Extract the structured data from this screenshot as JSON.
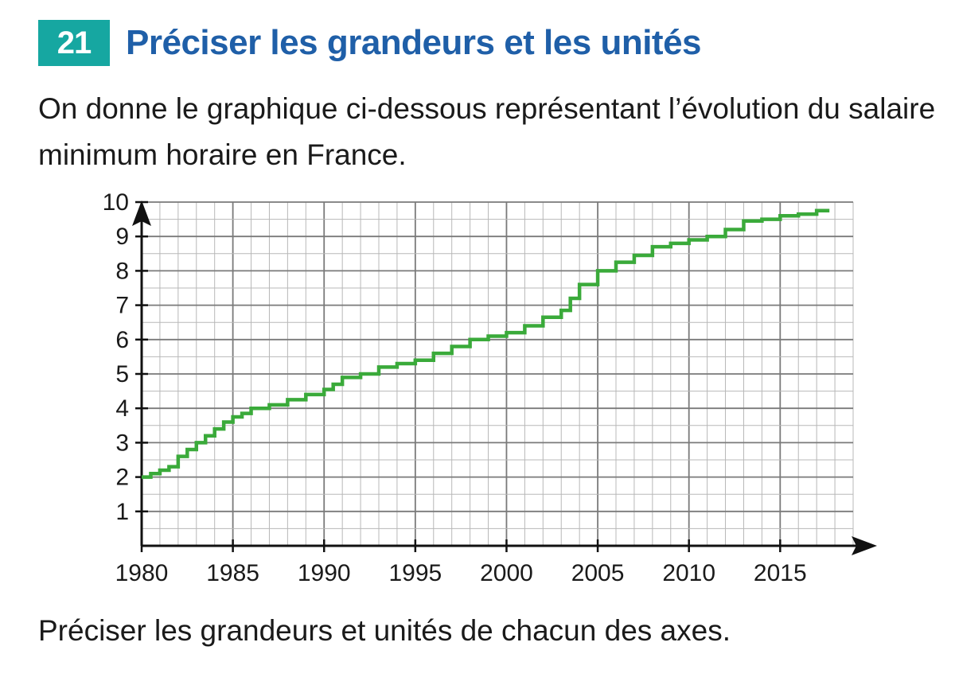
{
  "exercise": {
    "number": "21",
    "title": "Préciser les grandeurs et les unités",
    "intro": "On donne le graphique ci-dessous représentant l’évolution du salaire minimum horaire en France.",
    "question": "Préciser les grandeurs et unités de chacun des axes."
  },
  "colors": {
    "badge": "#16a7a1",
    "title": "#1f5fa8",
    "series": "#3aaa3a",
    "grid": "#9a9a9a"
  },
  "chart_data": {
    "type": "line",
    "title": "",
    "xlabel": "",
    "ylabel": "",
    "xlim": [
      1980,
      2019
    ],
    "ylim": [
      0,
      10
    ],
    "x_ticks": [
      1980,
      1985,
      1990,
      1995,
      2000,
      2005,
      2010,
      2015
    ],
    "y_ticks": [
      1,
      2,
      3,
      4,
      5,
      6,
      7,
      8,
      9,
      10
    ],
    "grid": true,
    "step": true,
    "series": [
      {
        "name": "Salaire minimum horaire",
        "x": [
          1980,
          1980.5,
          1981,
          1981.5,
          1982,
          1982.5,
          1983,
          1983.5,
          1984,
          1984.5,
          1985,
          1985.5,
          1986,
          1987,
          1988,
          1989,
          1990,
          1990.5,
          1991,
          1992,
          1993,
          1994,
          1995,
          1996,
          1997,
          1998,
          1999,
          2000,
          2001,
          2002,
          2003,
          2003.5,
          2004,
          2005,
          2006,
          2007,
          2008,
          2009,
          2010,
          2011,
          2012,
          2013,
          2014,
          2015,
          2016,
          2017,
          2017.7
        ],
        "y": [
          2.0,
          2.1,
          2.2,
          2.3,
          2.6,
          2.8,
          3.0,
          3.2,
          3.4,
          3.6,
          3.75,
          3.85,
          4.0,
          4.1,
          4.25,
          4.4,
          4.55,
          4.7,
          4.9,
          5.0,
          5.2,
          5.3,
          5.4,
          5.6,
          5.8,
          6.0,
          6.1,
          6.2,
          6.4,
          6.65,
          6.85,
          7.2,
          7.6,
          8.0,
          8.25,
          8.45,
          8.7,
          8.8,
          8.9,
          9.0,
          9.2,
          9.45,
          9.5,
          9.6,
          9.65,
          9.75,
          9.75
        ]
      }
    ]
  }
}
